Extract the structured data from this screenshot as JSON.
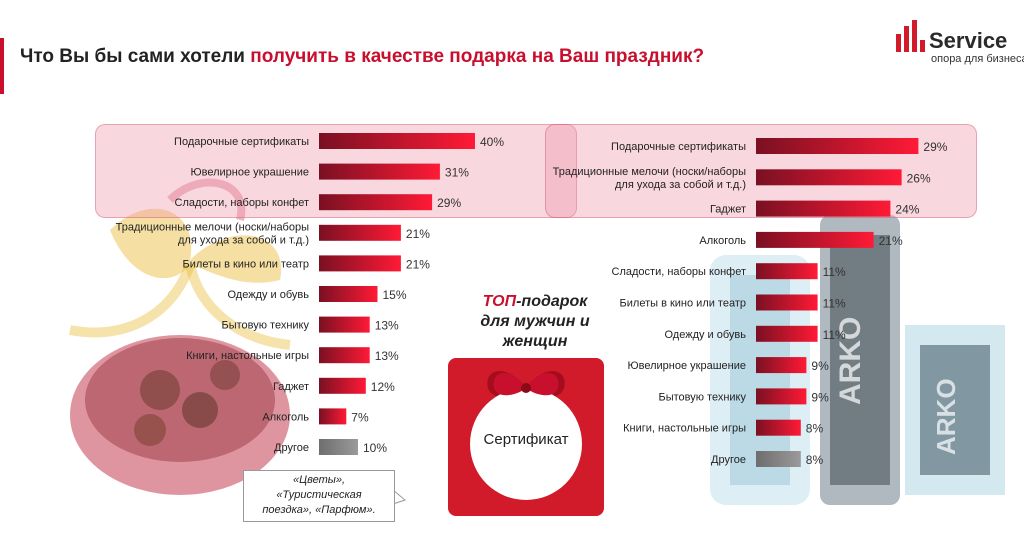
{
  "title": {
    "part1": "Что Вы бы сами хотели ",
    "part2": "получить в качестве подарка на Ваш праздник?"
  },
  "logo": {
    "name": "Service",
    "tagline": "опора для бизнеса"
  },
  "colors": {
    "accent": "#c8102e",
    "bar_dark": "#7a1022",
    "bar_bright": "#ff1a36",
    "bar_grey": "#8a8a8a"
  },
  "chart_data": [
    {
      "type": "bar",
      "orientation": "horizontal",
      "value_suffix": "%",
      "categories": [
        "Подарочные сертификаты",
        "Ювелирное украшение",
        "Сладости, наборы конфет",
        "Традиционные мелочи (носки/наборы для ухода за собой и т.д.)",
        "Билеты в кино или театр",
        "Одежду и обувь",
        "Бытовую технику",
        "Книги, настольные игры",
        "Гаджет",
        "Алкоголь",
        "Другое"
      ],
      "label_lines": [
        [
          "Подарочные сертификаты"
        ],
        [
          "Ювелирное украшение"
        ],
        [
          "Сладости, наборы конфет"
        ],
        [
          "Традиционные мелочи (носки/наборы",
          "для ухода за собой и т.д.)"
        ],
        [
          "Билеты в кино или театр"
        ],
        [
          "Одежду и обувь"
        ],
        [
          "Бытовую технику"
        ],
        [
          "Книги, настольные игры"
        ],
        [
          "Гаджет"
        ],
        [
          "Алкоголь"
        ],
        [
          "Другое"
        ]
      ],
      "values": [
        40,
        31,
        29,
        21,
        21,
        15,
        13,
        13,
        12,
        7,
        10
      ],
      "grey_last": true
    },
    {
      "type": "bar",
      "orientation": "horizontal",
      "value_suffix": "%",
      "categories": [
        "Подарочные сертификаты",
        "Традиционные мелочи (носки/наборы для ухода за собой и т.д.)",
        "Гаджет",
        "Алкоголь",
        "Сладости, наборы конфет",
        "Билеты в кино или театр",
        "Одежду и обувь",
        "Ювелирное украшение",
        "Бытовую технику",
        "Книги, настольные игры",
        "Другое"
      ],
      "label_lines": [
        [
          "Подарочные сертификаты"
        ],
        [
          "Традиционные мелочи (носки/наборы",
          "для ухода за собой и т.д.)"
        ],
        [
          "Гаджет"
        ],
        [
          "Алкоголь"
        ],
        [
          "Сладости, наборы конфет"
        ],
        [
          "Билеты в кино или театр"
        ],
        [
          "Одежду и обувь"
        ],
        [
          "Ювелирное украшение"
        ],
        [
          "Бытовую технику"
        ],
        [
          "Книги, настольные игры"
        ],
        [
          "Другое"
        ]
      ],
      "values": [
        29,
        26,
        24,
        21,
        11,
        11,
        11,
        9,
        9,
        8,
        8
      ],
      "grey_last": true
    }
  ],
  "top_gift": {
    "line1a": "ТОП",
    "line1b": "-подарок",
    "line2": "для мужчин и",
    "line3": "женщин"
  },
  "certificate_label": "Сертификат",
  "callout": {
    "line1": "«Цветы»,",
    "line2": "«Туристическая",
    "line3": "поездка», «Парфюм»."
  }
}
